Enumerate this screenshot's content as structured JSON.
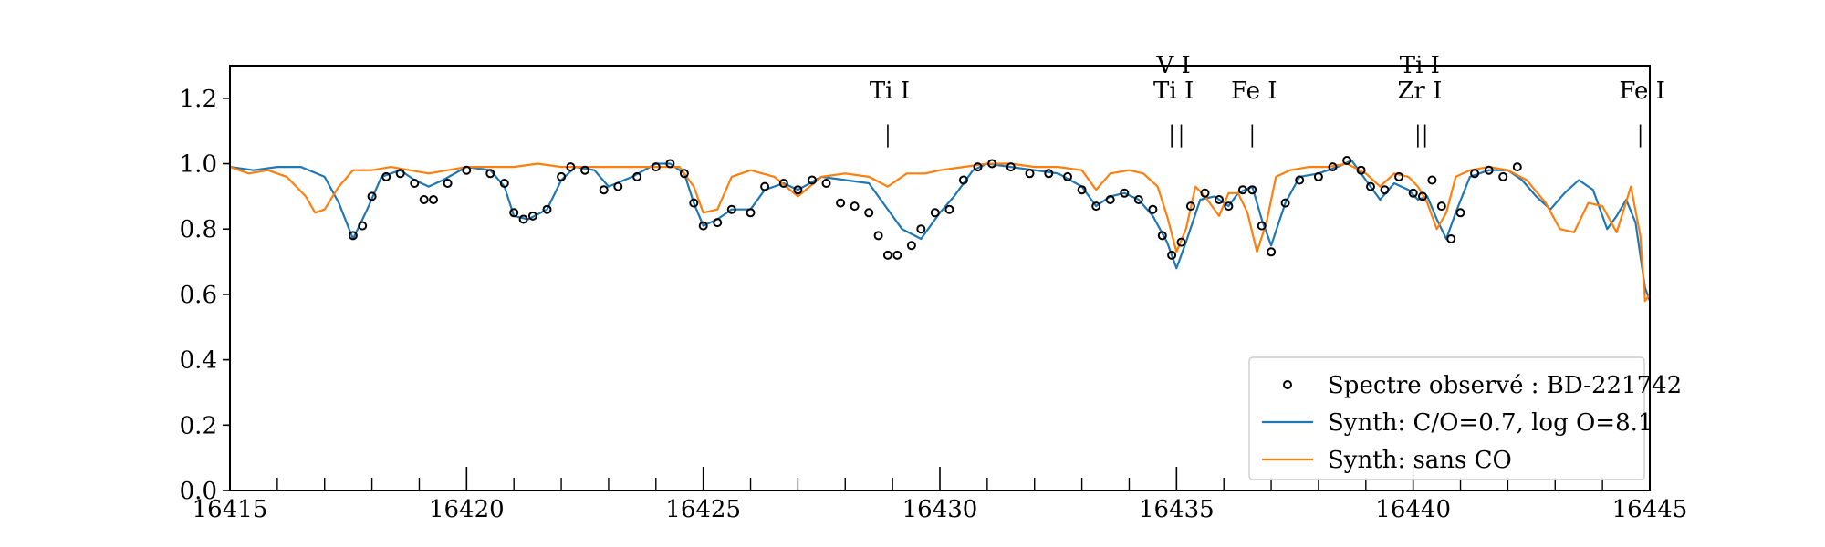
{
  "chart_data": {
    "type": "line",
    "title": "",
    "xlabel": "",
    "ylabel": "",
    "xlim": [
      16415,
      16445
    ],
    "ylim": [
      0.0,
      1.3
    ],
    "x_ticks": [
      16415,
      16420,
      16425,
      16430,
      16435,
      16440,
      16445
    ],
    "x_tick_labels": [
      "16415",
      "16420",
      "16425",
      "16430",
      "16435",
      "16440",
      "16445"
    ],
    "x_minor_step": 1,
    "y_ticks": [
      0.0,
      0.2,
      0.4,
      0.6,
      0.8,
      1.0,
      1.2
    ],
    "y_tick_labels": [
      "0.0",
      "0.2",
      "0.4",
      "0.6",
      "0.8",
      "1.0",
      "1.2"
    ],
    "grid": false,
    "legend": {
      "placement": "lower-right",
      "entries": [
        "Spectre observé : BD-221742",
        "Synth: C/O=0.7, log O=8.1",
        "Synth: sans CO"
      ]
    },
    "line_identifications": [
      {
        "x": 16428.9,
        "labels": [
          "Ti I"
        ]
      },
      {
        "x": 16434.9,
        "labels": [
          "Ti I"
        ]
      },
      {
        "x": 16435.1,
        "labels": [
          "V I"
        ]
      },
      {
        "x": 16436.6,
        "labels": [
          "Fe I"
        ]
      },
      {
        "x": 16440.1,
        "labels": [
          "Zr I"
        ]
      },
      {
        "x": 16440.25,
        "labels": [
          "Ti I"
        ]
      },
      {
        "x": 16444.8,
        "labels": [
          "Fe I"
        ]
      }
    ],
    "series": [
      {
        "name": "Spectre observé : BD-221742",
        "style": "markers",
        "color": "#000000",
        "x": [
          16417.6,
          16417.8,
          16418.0,
          16418.3,
          16418.6,
          16418.9,
          16419.1,
          16419.3,
          16419.6,
          16420.0,
          16420.5,
          16420.8,
          16421.0,
          16421.2,
          16421.4,
          16421.7,
          16422.0,
          16422.2,
          16422.5,
          16422.9,
          16423.2,
          16423.6,
          16424.0,
          16424.3,
          16424.6,
          16424.8,
          16425.0,
          16425.3,
          16425.6,
          16426.0,
          16426.3,
          16426.7,
          16427.0,
          16427.3,
          16427.6,
          16427.9,
          16428.2,
          16428.5,
          16428.7,
          16428.9,
          16429.1,
          16429.4,
          16429.6,
          16429.9,
          16430.2,
          16430.5,
          16430.8,
          16431.1,
          16431.5,
          16431.9,
          16432.3,
          16432.7,
          16433.0,
          16433.3,
          16433.6,
          16433.9,
          16434.2,
          16434.5,
          16434.7,
          16434.9,
          16435.1,
          16435.3,
          16435.6,
          16435.9,
          16436.1,
          16436.4,
          16436.6,
          16436.8,
          16437.0,
          16437.3,
          16437.6,
          16438.0,
          16438.3,
          16438.6,
          16438.9,
          16439.1,
          16439.4,
          16439.7,
          16440.0,
          16440.2,
          16440.4,
          16440.6,
          16440.8,
          16441.0,
          16441.3,
          16441.6,
          16441.9,
          16442.2
        ],
        "y": [
          0.78,
          0.81,
          0.9,
          0.96,
          0.97,
          0.94,
          0.89,
          0.89,
          0.94,
          0.98,
          0.97,
          0.94,
          0.85,
          0.83,
          0.84,
          0.86,
          0.96,
          0.99,
          0.98,
          0.92,
          0.93,
          0.96,
          0.99,
          1.0,
          0.97,
          0.88,
          0.81,
          0.82,
          0.86,
          0.85,
          0.93,
          0.94,
          0.92,
          0.95,
          0.94,
          0.88,
          0.87,
          0.85,
          0.78,
          0.72,
          0.72,
          0.75,
          0.8,
          0.85,
          0.86,
          0.95,
          0.99,
          1.0,
          0.99,
          0.97,
          0.97,
          0.96,
          0.92,
          0.87,
          0.89,
          0.91,
          0.89,
          0.86,
          0.78,
          0.72,
          0.76,
          0.87,
          0.91,
          0.89,
          0.87,
          0.92,
          0.92,
          0.81,
          0.73,
          0.88,
          0.95,
          0.96,
          0.99,
          1.01,
          0.98,
          0.93,
          0.92,
          0.96,
          0.91,
          0.9,
          0.95,
          0.87,
          0.77,
          0.85,
          0.97,
          0.98,
          0.96,
          0.99
        ]
      },
      {
        "name": "Synth: C/O=0.7, log O=8.1",
        "style": "line",
        "color": "#1f77b4",
        "x": [
          16415.0,
          16415.5,
          16416.0,
          16416.5,
          16417.0,
          16417.3,
          16417.6,
          16417.9,
          16418.2,
          16418.6,
          16418.9,
          16419.2,
          16419.5,
          16420.0,
          16420.5,
          16420.8,
          16421.0,
          16421.3,
          16421.7,
          16422.0,
          16422.3,
          16422.7,
          16423.0,
          16423.5,
          16424.0,
          16424.3,
          16424.6,
          16424.8,
          16425.0,
          16425.3,
          16425.6,
          16426.0,
          16426.3,
          16426.7,
          16427.0,
          16427.5,
          16428.0,
          16428.5,
          16428.8,
          16429.2,
          16429.6,
          16430.0,
          16430.3,
          16430.7,
          16431.0,
          16431.5,
          16432.0,
          16432.5,
          16433.0,
          16433.3,
          16433.6,
          16433.9,
          16434.2,
          16434.5,
          16434.8,
          16435.0,
          16435.2,
          16435.5,
          16435.8,
          16436.1,
          16436.3,
          16436.6,
          16436.8,
          16437.0,
          16437.3,
          16437.6,
          16438.0,
          16438.4,
          16438.7,
          16439.0,
          16439.3,
          16439.6,
          16439.9,
          16440.1,
          16440.3,
          16440.5,
          16440.7,
          16440.9,
          16441.2,
          16441.6,
          16442.0,
          16442.3,
          16442.6,
          16442.9,
          16443.2,
          16443.5,
          16443.8,
          16444.1,
          16444.3,
          16444.5,
          16444.7,
          16444.9,
          16445.0
        ],
        "y": [
          0.99,
          0.98,
          0.99,
          0.99,
          0.96,
          0.88,
          0.77,
          0.86,
          0.96,
          0.98,
          0.95,
          0.93,
          0.95,
          0.99,
          0.98,
          0.93,
          0.84,
          0.83,
          0.86,
          0.95,
          0.99,
          0.98,
          0.93,
          0.96,
          1.0,
          1.0,
          0.97,
          0.88,
          0.81,
          0.83,
          0.86,
          0.86,
          0.92,
          0.94,
          0.92,
          0.96,
          0.95,
          0.94,
          0.88,
          0.8,
          0.77,
          0.85,
          0.9,
          0.98,
          1.0,
          0.99,
          0.98,
          0.97,
          0.93,
          0.87,
          0.9,
          0.91,
          0.89,
          0.84,
          0.76,
          0.68,
          0.76,
          0.89,
          0.9,
          0.87,
          0.91,
          0.93,
          0.83,
          0.75,
          0.88,
          0.96,
          0.97,
          0.99,
          1.01,
          0.95,
          0.89,
          0.94,
          0.92,
          0.89,
          0.9,
          0.83,
          0.77,
          0.85,
          0.96,
          0.98,
          0.98,
          0.95,
          0.9,
          0.86,
          0.91,
          0.95,
          0.92,
          0.8,
          0.84,
          0.89,
          0.82,
          0.62,
          0.58
        ]
      },
      {
        "name": "Synth: sans CO",
        "style": "line",
        "color": "#ff7f0e",
        "x": [
          16415.0,
          16415.4,
          16415.8,
          16416.2,
          16416.6,
          16416.8,
          16417.0,
          16417.3,
          16417.6,
          16418.0,
          16418.4,
          16418.8,
          16419.2,
          16419.6,
          16420.0,
          16420.5,
          16421.0,
          16421.5,
          16422.0,
          16422.5,
          16423.0,
          16423.5,
          16424.0,
          16424.5,
          16424.8,
          16425.0,
          16425.3,
          16425.6,
          16426.0,
          16426.5,
          16427.0,
          16427.5,
          16428.0,
          16428.5,
          16428.9,
          16429.3,
          16429.7,
          16430.0,
          16430.5,
          16431.0,
          16431.5,
          16432.0,
          16432.5,
          16433.0,
          16433.3,
          16433.6,
          16434.0,
          16434.3,
          16434.6,
          16434.8,
          16435.0,
          16435.2,
          16435.4,
          16435.6,
          16435.9,
          16436.1,
          16436.3,
          16436.5,
          16436.7,
          16436.9,
          16437.1,
          16437.4,
          16437.8,
          16438.2,
          16438.6,
          16439.0,
          16439.3,
          16439.6,
          16439.9,
          16440.1,
          16440.3,
          16440.5,
          16440.7,
          16440.9,
          16441.2,
          16441.6,
          16442.0,
          16442.4,
          16442.8,
          16443.1,
          16443.4,
          16443.7,
          16444.0,
          16444.3,
          16444.6,
          16444.8,
          16444.9,
          16445.0
        ],
        "y": [
          0.99,
          0.97,
          0.98,
          0.96,
          0.9,
          0.85,
          0.86,
          0.93,
          0.98,
          0.98,
          0.99,
          0.98,
          0.97,
          0.98,
          0.99,
          0.99,
          0.99,
          1.0,
          0.99,
          0.99,
          0.99,
          0.99,
          0.99,
          0.99,
          0.93,
          0.85,
          0.86,
          0.96,
          0.98,
          0.96,
          0.9,
          0.96,
          0.97,
          0.96,
          0.93,
          0.97,
          0.97,
          0.98,
          0.99,
          1.0,
          1.0,
          0.99,
          0.99,
          0.98,
          0.92,
          0.97,
          0.98,
          0.97,
          0.93,
          0.84,
          0.73,
          0.8,
          0.93,
          0.9,
          0.84,
          0.91,
          0.91,
          0.85,
          0.73,
          0.82,
          0.96,
          0.98,
          0.99,
          0.99,
          1.0,
          0.97,
          0.93,
          0.97,
          0.96,
          0.93,
          0.88,
          0.8,
          0.85,
          0.96,
          0.98,
          0.99,
          0.98,
          0.95,
          0.88,
          0.8,
          0.79,
          0.88,
          0.87,
          0.79,
          0.93,
          0.78,
          0.58,
          0.6
        ]
      }
    ]
  }
}
